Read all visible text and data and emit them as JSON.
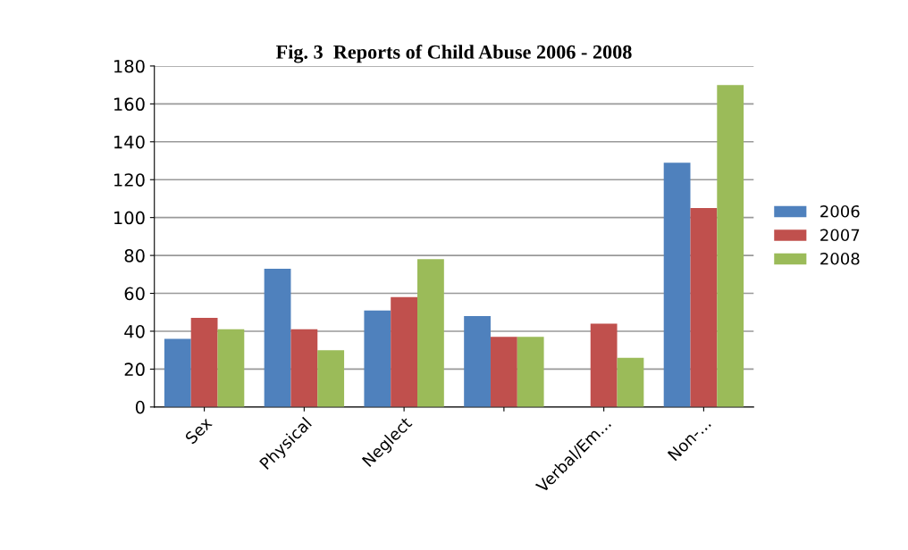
{
  "chart_data": {
    "type": "bar",
    "title": "Fig. 3  Reports of Child Abuse 2006 - 2008",
    "categories": [
      "Sex",
      "Physical",
      "Neglect",
      null,
      "Verbal/Em...",
      "Non-..."
    ],
    "series": [
      {
        "name": "2006",
        "color": "#4f81bd",
        "values": [
          36,
          73,
          51,
          48,
          0,
          129
        ]
      },
      {
        "name": "2007",
        "color": "#c0504d",
        "values": [
          47,
          41,
          58,
          37,
          44,
          105
        ]
      },
      {
        "name": "2008",
        "color": "#9bbb59",
        "values": [
          41,
          30,
          78,
          37,
          26,
          170
        ]
      }
    ],
    "ylim": [
      0,
      180
    ],
    "yticks": [
      0,
      20,
      40,
      60,
      80,
      100,
      120,
      140,
      160,
      180
    ],
    "grid": "y",
    "legend": "right"
  }
}
